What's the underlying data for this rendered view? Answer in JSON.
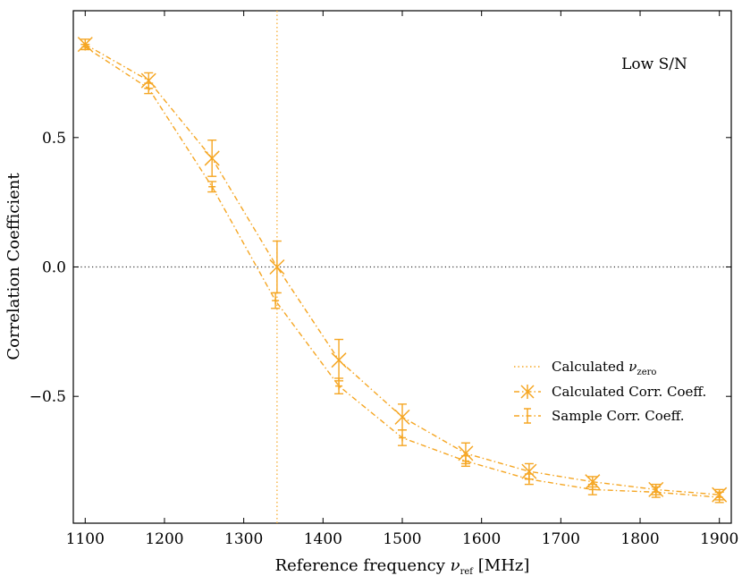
{
  "chart_data": {
    "type": "line",
    "title": "",
    "annotation": "Low S/N",
    "xlabel_prefix": "Reference frequency ",
    "xlabel_symbol": "ν",
    "xlabel_sub": "ref",
    "xlabel_suffix": " [MHz]",
    "ylabel": "Correlation Coefficient",
    "xlim": [
      1085,
      1915
    ],
    "ylim": [
      -0.99,
      0.99
    ],
    "x_ticks": [
      1100,
      1200,
      1300,
      1400,
      1500,
      1600,
      1700,
      1800,
      1900
    ],
    "y_ticks": [
      -0.5,
      0.0,
      0.5
    ],
    "x_tick_labels": [
      "1100",
      "1200",
      "1300",
      "1400",
      "1500",
      "1600",
      "1700",
      "1800",
      "1900"
    ],
    "y_tick_labels": [
      "−0.5",
      "0.0",
      "0.5"
    ],
    "zero_line_y": 0.0,
    "nu_zero": 1342,
    "colors": {
      "series": "#f5a623",
      "zero_line": "#333333",
      "frame": "#000000"
    },
    "legend": {
      "placement": "right",
      "nu_zero_text": "Calculated ",
      "nu_zero_symbol": "ν",
      "nu_zero_sub": "zero",
      "calc_label": "Calculated Corr. Coeff.",
      "sample_label": "Sample Corr. Coeff."
    },
    "series": [
      {
        "name": "Calculated Corr. Coeff.",
        "marker": "x",
        "x": [
          1100,
          1180,
          1260,
          1342,
          1420,
          1500,
          1580,
          1660,
          1740,
          1820,
          1900
        ],
        "y": [
          0.86,
          0.72,
          0.42,
          0.0,
          -0.36,
          -0.58,
          -0.72,
          -0.79,
          -0.83,
          -0.86,
          -0.88
        ],
        "err": [
          0.02,
          0.03,
          0.07,
          0.1,
          0.08,
          0.05,
          0.04,
          0.03,
          0.02,
          0.02,
          0.02
        ]
      },
      {
        "name": "Sample Corr. Coeff.",
        "marker": "+",
        "x": [
          1100,
          1180,
          1260,
          1340,
          1420,
          1500,
          1580,
          1660,
          1740,
          1820,
          1900
        ],
        "y": [
          0.85,
          0.69,
          0.31,
          -0.13,
          -0.46,
          -0.66,
          -0.75,
          -0.82,
          -0.86,
          -0.87,
          -0.89
        ],
        "err": [
          0.01,
          0.02,
          0.02,
          0.03,
          0.03,
          0.03,
          0.02,
          0.02,
          0.02,
          0.02,
          0.02
        ]
      }
    ]
  }
}
